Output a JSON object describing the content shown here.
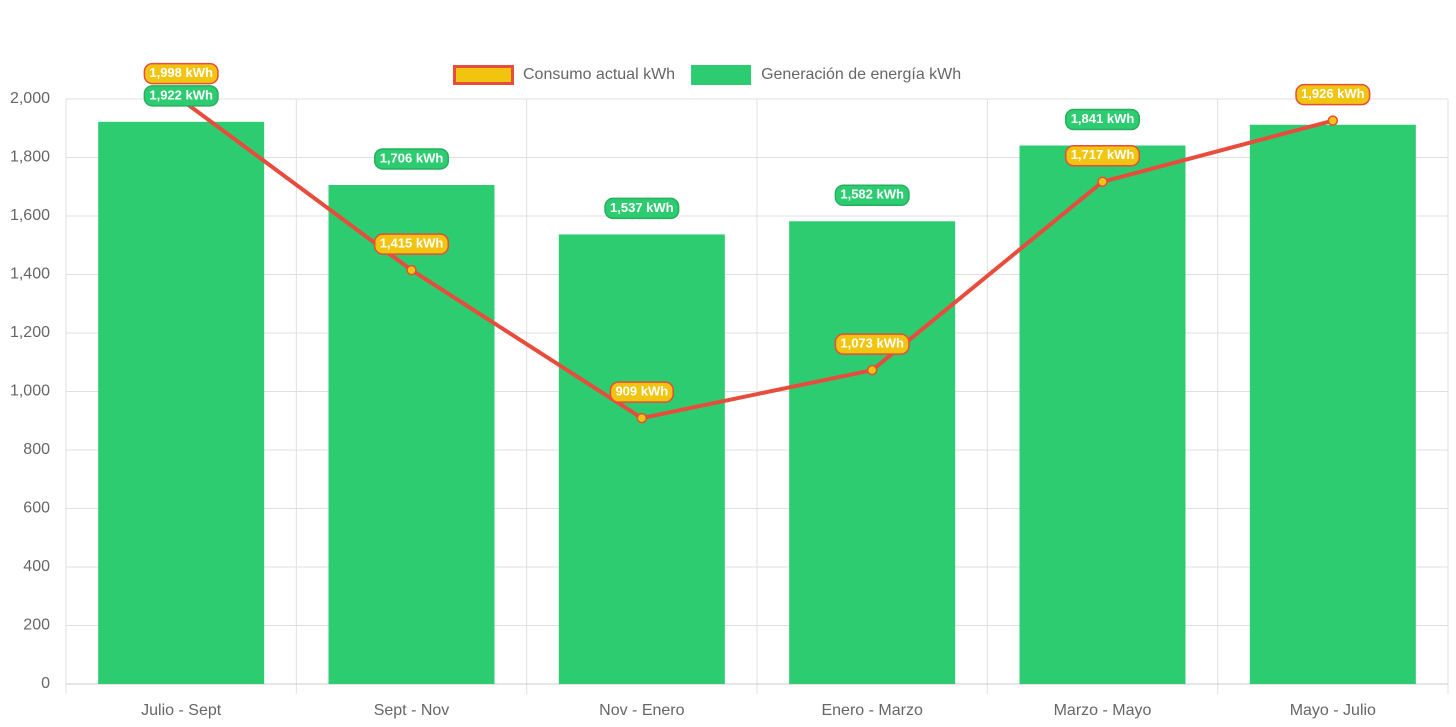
{
  "chart_data": {
    "type": "bar",
    "categories": [
      "Julio - Sept",
      "Sept - Nov",
      "Nov - Enero",
      "Enero - Marzo",
      "Marzo - Mayo",
      "Mayo - Julio"
    ],
    "series": [
      {
        "name": "Consumo actual kWh",
        "type": "line",
        "color": "#e74c3c",
        "point_color": "#f1c40f",
        "values": [
          1998,
          1415,
          909,
          1073,
          1717,
          1926
        ],
        "value_labels": [
          "1,998 kWh",
          "1,415 kWh",
          "909 kWh",
          "1,073 kWh",
          "1,717 kWh",
          "1,926 kWh"
        ]
      },
      {
        "name": "Generación de energía kWh",
        "type": "bar",
        "color": "#2ecc71",
        "values": [
          1922,
          1706,
          1537,
          1582,
          1841,
          1912
        ],
        "value_labels": [
          "1,922 kWh",
          "1,706 kWh",
          "1,537 kWh",
          "1,582 kWh",
          "1,841 kWh",
          null
        ]
      }
    ],
    "ylim": [
      0,
      2000
    ],
    "yticks": [
      0,
      200,
      400,
      600,
      800,
      {
        "value": 1000,
        "label": "1,000"
      },
      {
        "value": 1200,
        "label": "1,200"
      },
      {
        "value": 1400,
        "label": "1,400"
      },
      {
        "value": 1600,
        "label": "1,600"
      },
      {
        "value": 1800,
        "label": "1,800"
      },
      {
        "value": 2000,
        "label": "2,000"
      }
    ],
    "grid": true
  }
}
